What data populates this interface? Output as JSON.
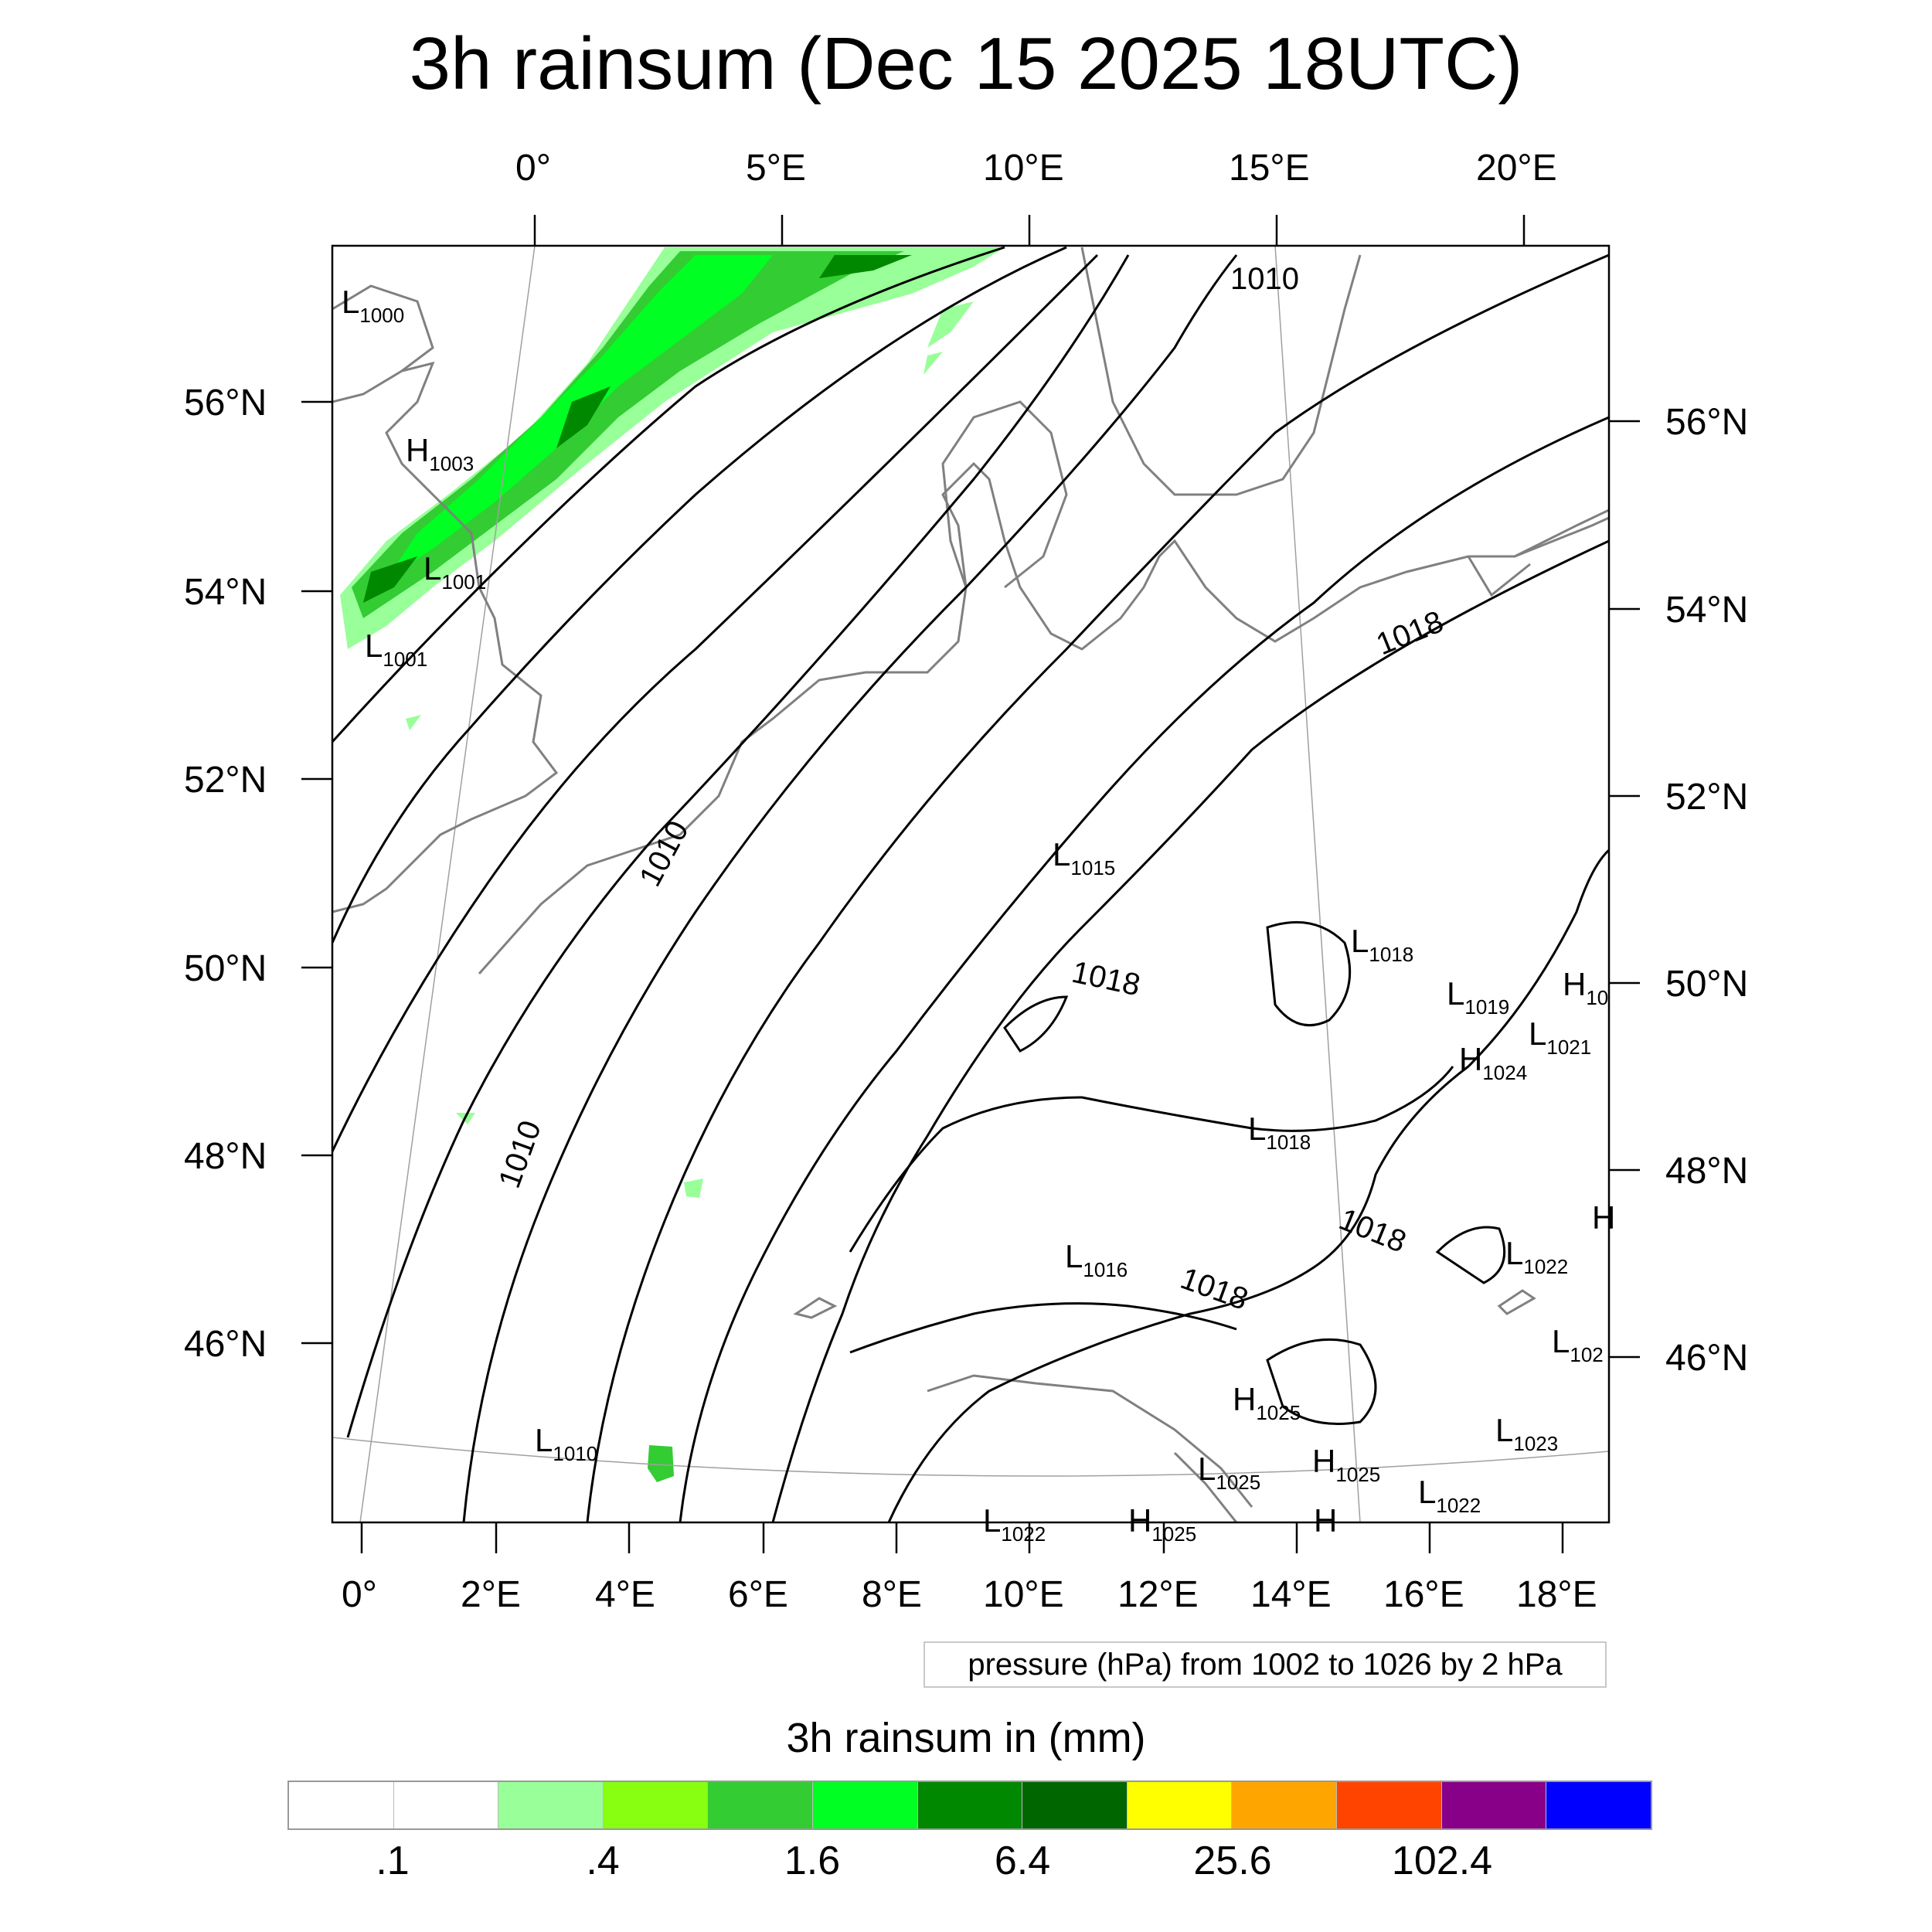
{
  "title": "3h rainsum (Dec 15 2025 18UTC)",
  "top_lon_labels": [
    "0°",
    "5°E",
    "10°E",
    "15°E",
    "20°E"
  ],
  "bottom_lon_labels": [
    "0°",
    "2°E",
    "4°E",
    "6°E",
    "8°E",
    "10°E",
    "12°E",
    "14°E",
    "16°E",
    "18°E"
  ],
  "left_lat_labels": [
    "56°N",
    "54°N",
    "52°N",
    "50°N",
    "48°N",
    "46°N"
  ],
  "right_lat_labels": [
    "56°N",
    "54°N",
    "52°N",
    "50°N",
    "48°N",
    "46°N"
  ],
  "contour_labels": [
    "1010",
    "1010",
    "1010",
    "1018",
    "1018",
    "1018",
    "1018"
  ],
  "pressure_markers": [
    {
      "type": "L",
      "value": "1000"
    },
    {
      "type": "H",
      "value": "1003"
    },
    {
      "type": "L",
      "value": "1001"
    },
    {
      "type": "L",
      "value": "1001"
    },
    {
      "type": "L",
      "value": "1015"
    },
    {
      "type": "L",
      "value": "1018"
    },
    {
      "type": "L",
      "value": "1019"
    },
    {
      "type": "H",
      "value": "10"
    },
    {
      "type": "L",
      "value": "1021"
    },
    {
      "type": "H",
      "value": "1024"
    },
    {
      "type": "L",
      "value": "1018"
    },
    {
      "type": "H",
      "value": ""
    },
    {
      "type": "L",
      "value": "1016"
    },
    {
      "type": "L",
      "value": "1022"
    },
    {
      "type": "L",
      "value": "102"
    },
    {
      "type": "H",
      "value": "1025"
    },
    {
      "type": "L",
      "value": "1010"
    },
    {
      "type": "L",
      "value": "1023"
    },
    {
      "type": "L",
      "value": "1025"
    },
    {
      "type": "H",
      "value": "1025"
    },
    {
      "type": "L",
      "value": "1022"
    },
    {
      "type": "L",
      "value": "1022"
    },
    {
      "type": "H",
      "value": "1025"
    },
    {
      "type": "H",
      "value": ""
    }
  ],
  "contour_info": "pressure (hPa) from 1002 to 1026 by 2 hPa",
  "colorbar": {
    "title": "3h rainsum in (mm)",
    "colors": [
      "#ffffff",
      "#ffffff",
      "#99ff99",
      "#88ff11",
      "#33cc33",
      "#00ff22",
      "#008800",
      "#006600",
      "#ffff00",
      "#ffa500",
      "#ff4400",
      "#880088",
      "#0000ff"
    ],
    "labels": [
      ".1",
      ".4",
      "1.6",
      "6.4",
      "25.6",
      "102.4"
    ]
  },
  "colors": {
    "coastline": "#808080",
    "isobar": "#000000",
    "gridline": "#a0a0a0"
  }
}
